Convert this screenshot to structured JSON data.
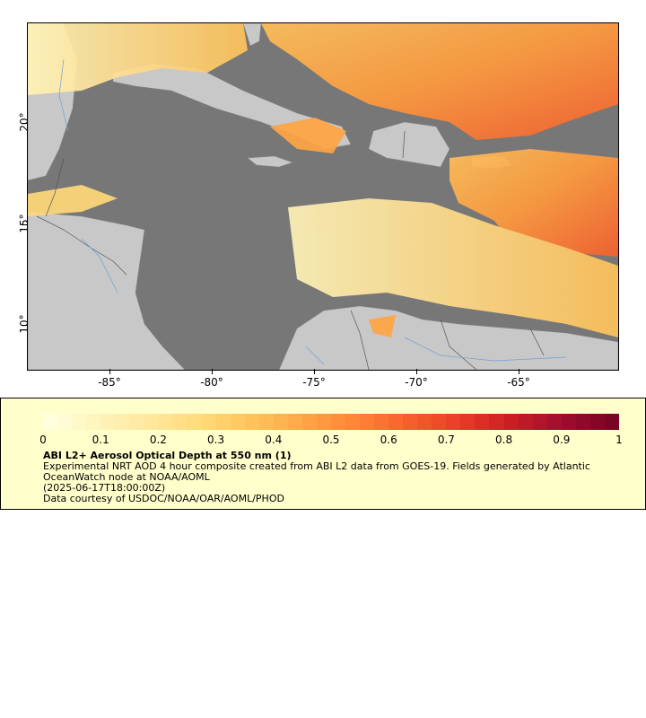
{
  "map": {
    "lon_ticks": [
      "-85°",
      "-80°",
      "-75°",
      "-70°",
      "-65°"
    ],
    "lon_values": [
      -85,
      -80,
      -75,
      -70,
      -65
    ],
    "lat_ticks": [
      "20°",
      "15°",
      "10°"
    ],
    "lat_values": [
      20,
      15,
      10
    ],
    "extent": {
      "lon": [
        -89,
        -60
      ],
      "lat": [
        8,
        25
      ]
    },
    "colors": {
      "ocean": "#777777",
      "land": "#c8c8c8",
      "rivers": "#6fa0d8",
      "borders": "#555555"
    }
  },
  "legend": {
    "colorbar_labels": [
      "0",
      "0.1",
      "0.2",
      "0.3",
      "0.4",
      "0.5",
      "0.6",
      "0.7",
      "0.8",
      "0.9",
      "1"
    ],
    "colorbar_range": [
      0,
      1
    ],
    "colorbar_colors": [
      "#ffffe0",
      "#fff3b8",
      "#ffe89a",
      "#ffd978",
      "#ffc25a",
      "#ffa544",
      "#ff8436",
      "#f8602d",
      "#e83e27",
      "#cc1e24",
      "#a00d2e",
      "#7a0426"
    ],
    "title": "ABI L2+ Aerosol Optical Depth at 550 nm (1)",
    "description": "Experimental NRT AOD 4 hour composite created from ABI L2 data from GOES-19. Fields generated by Atlantic OceanWatch node at NOAA/AOML",
    "timestamp": "(2025-06-17T18:00:00Z)",
    "credit": "Data courtesy of USDOC/NOAA/OAR/AOML/PHOD"
  }
}
